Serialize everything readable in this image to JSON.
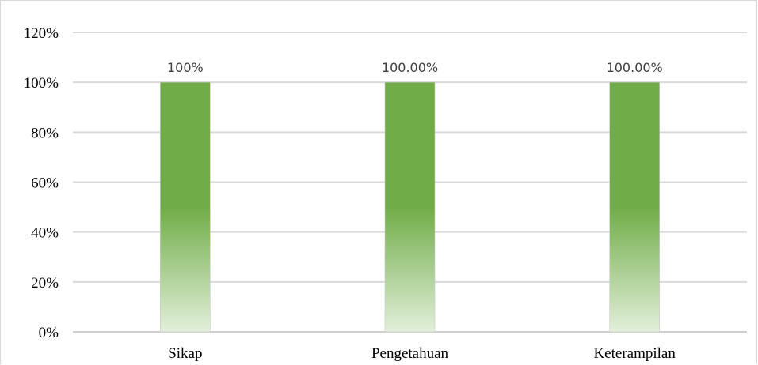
{
  "chart_data": {
    "type": "bar",
    "title": "",
    "xlabel": "",
    "ylabel": "",
    "categories": [
      "Sikap",
      "Pengetahuan",
      "Keterampilan"
    ],
    "values": [
      100,
      100,
      100
    ],
    "data_labels": [
      "100%",
      "100.00%",
      "100.00%"
    ],
    "ylim": [
      0,
      120
    ],
    "y_ticks": [
      0,
      20,
      40,
      60,
      80,
      100,
      120
    ],
    "y_tick_labels": [
      "0%",
      "20%",
      "40%",
      "60%",
      "80%",
      "100%",
      "120%"
    ],
    "grid": true,
    "legend": "none",
    "colors": {
      "bar_top": "#70ad47",
      "bar_bottom": "#e2efda",
      "gridline": "#d9d9d9",
      "axis": "#bfbfbf"
    }
  }
}
